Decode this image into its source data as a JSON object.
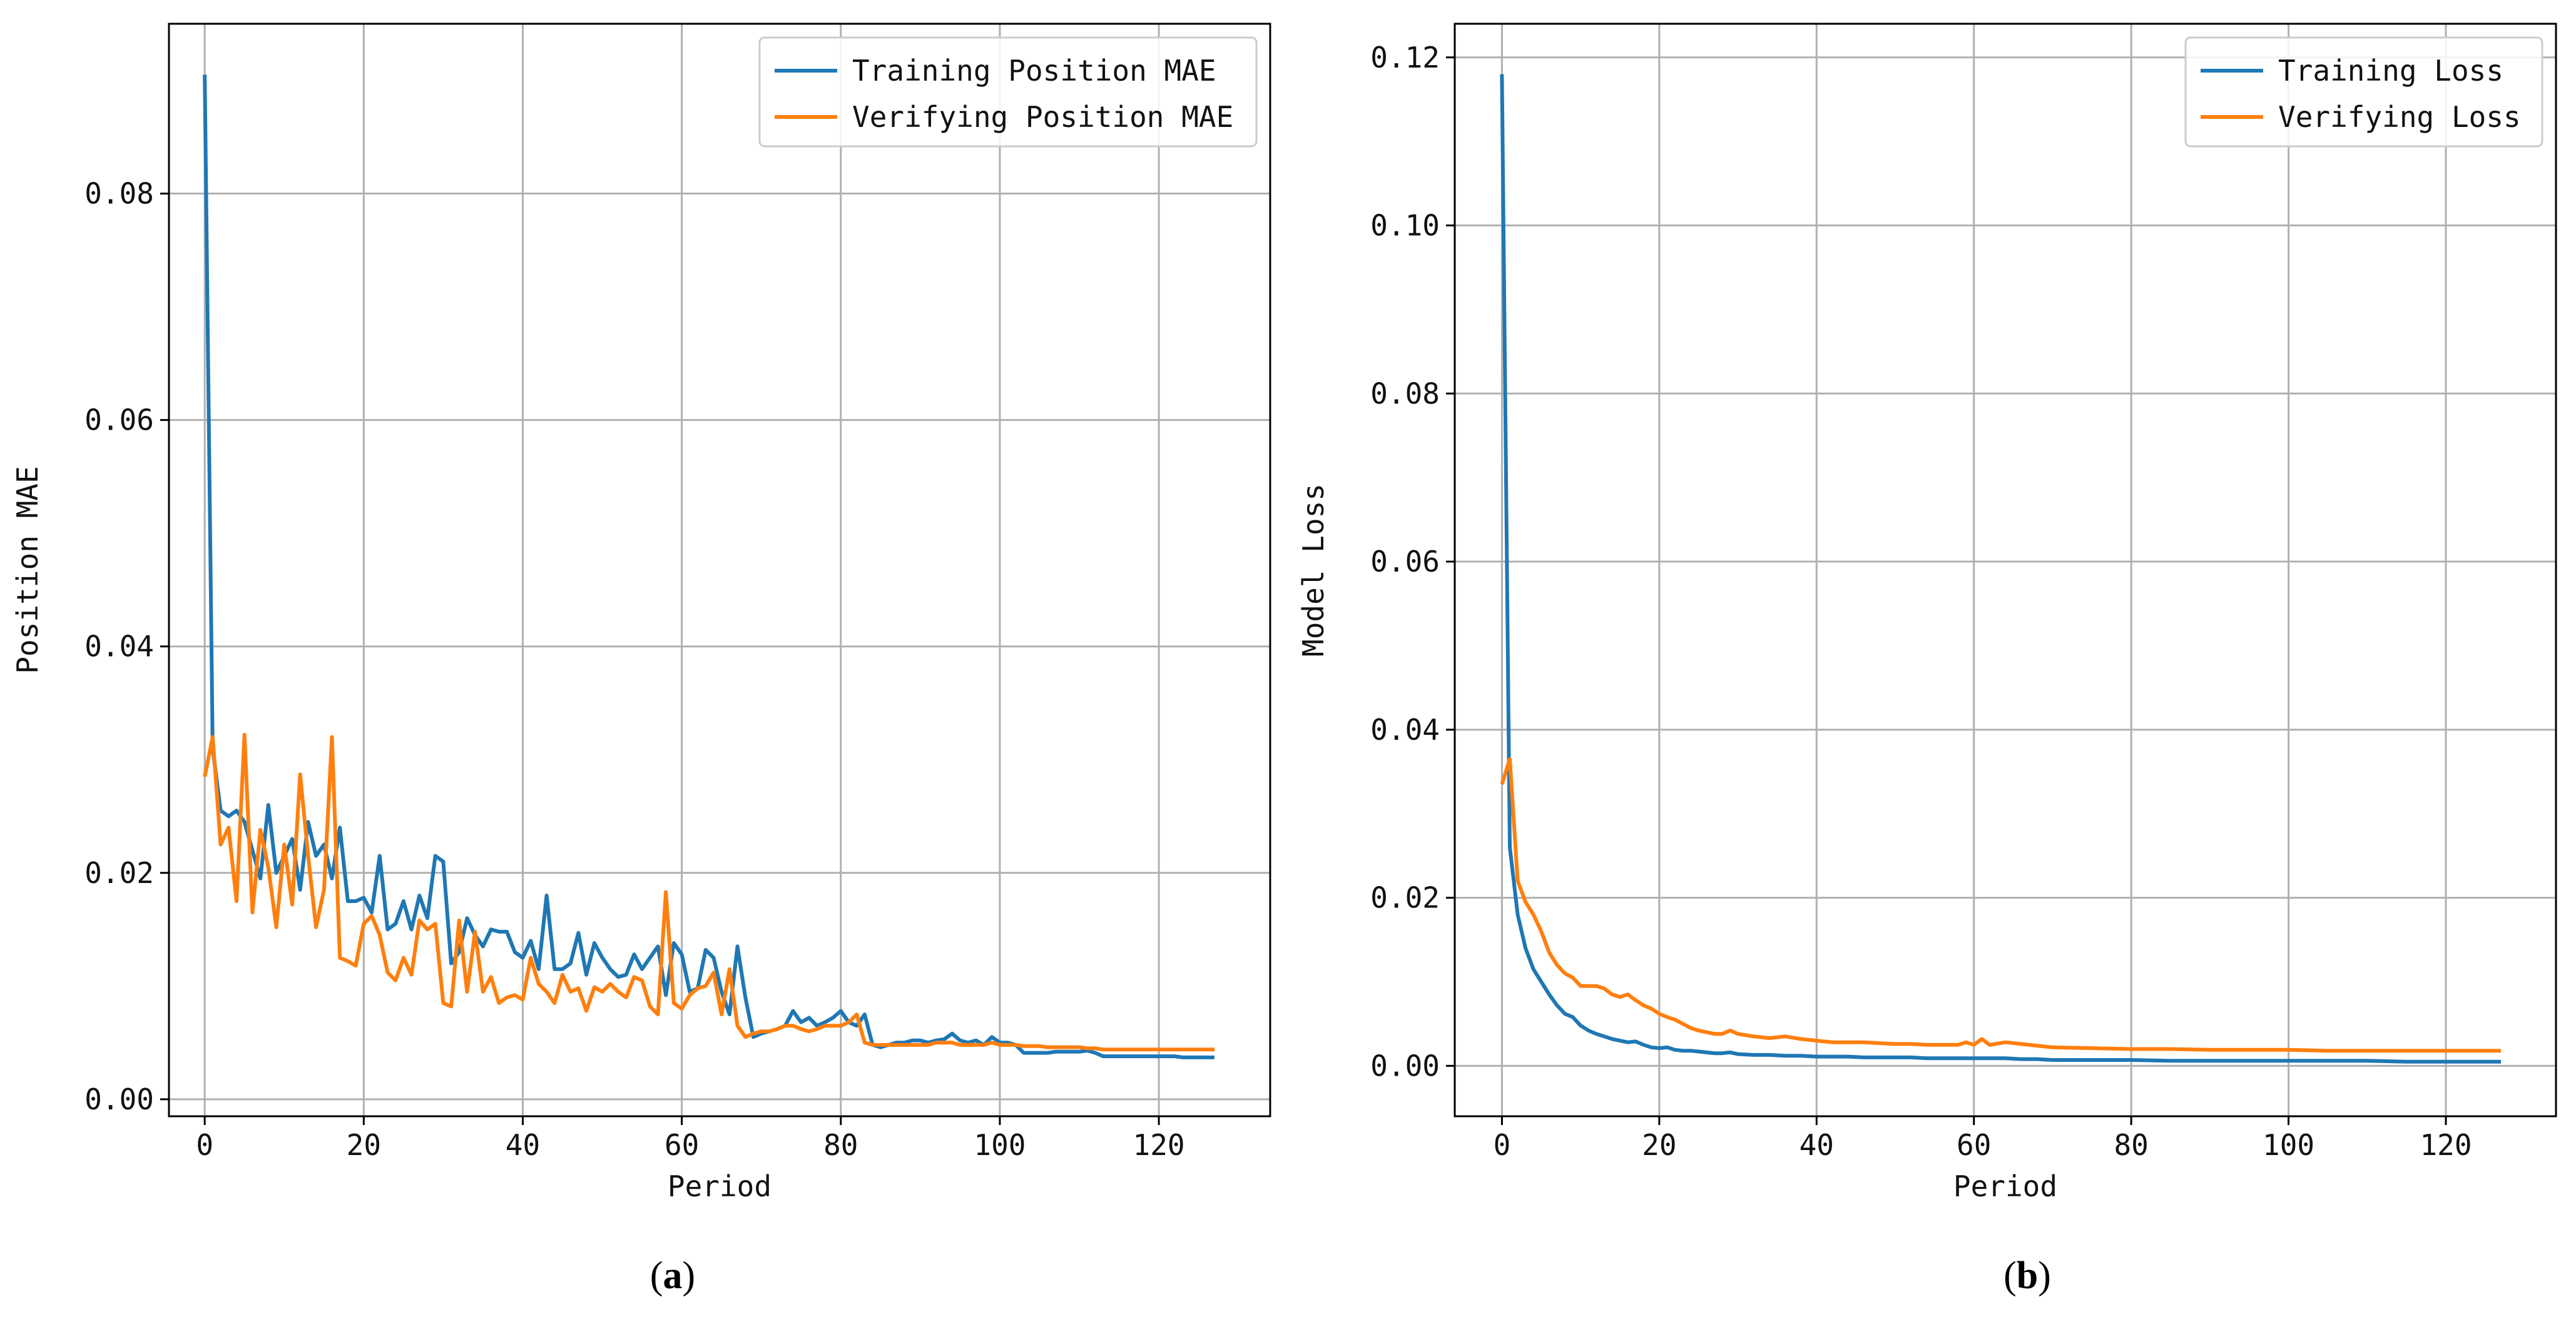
{
  "chart_data": [
    {
      "type": "line",
      "panel_caption": {
        "open": "(",
        "letter": "a",
        "close": ")"
      },
      "xlabel": "Period",
      "ylabel": "Position MAE",
      "xlim": [
        -4.5,
        134
      ],
      "ylim": [
        -0.0015,
        0.095
      ],
      "xticks": [
        0,
        20,
        40,
        60,
        80,
        100,
        120
      ],
      "xtick_labels": [
        "0",
        "20",
        "40",
        "60",
        "80",
        "100",
        "120"
      ],
      "yticks": [
        0.0,
        0.02,
        0.04,
        0.06,
        0.08
      ],
      "ytick_labels": [
        "0.00",
        "0.02",
        "0.04",
        "0.06",
        "0.08"
      ],
      "grid": true,
      "legend_position": "top-right",
      "series": [
        {
          "name": "Training Position MAE",
          "color": "#1f77b4",
          "x": [
            0,
            1,
            2,
            3,
            4,
            5,
            6,
            7,
            8,
            9,
            10,
            11,
            12,
            13,
            14,
            15,
            16,
            17,
            18,
            19,
            20,
            21,
            22,
            23,
            24,
            25,
            26,
            27,
            28,
            29,
            30,
            31,
            32,
            33,
            34,
            35,
            36,
            37,
            38,
            39,
            40,
            41,
            42,
            43,
            44,
            45,
            46,
            47,
            48,
            49,
            50,
            51,
            52,
            53,
            54,
            55,
            56,
            57,
            58,
            59,
            60,
            61,
            62,
            63,
            64,
            65,
            66,
            67,
            68,
            69,
            70,
            71,
            72,
            73,
            74,
            75,
            76,
            77,
            78,
            79,
            80,
            81,
            82,
            83,
            84,
            85,
            86,
            87,
            88,
            89,
            90,
            91,
            92,
            93,
            94,
            95,
            96,
            97,
            98,
            99,
            100,
            101,
            102,
            103,
            104,
            105,
            106,
            107,
            108,
            109,
            110,
            111,
            112,
            113,
            114,
            115,
            116,
            117,
            118,
            119,
            120,
            121,
            122,
            123,
            124,
            125,
            126,
            127
          ],
          "values": [
            0.0905,
            0.031,
            0.0255,
            0.025,
            0.0255,
            0.0245,
            0.022,
            0.0195,
            0.026,
            0.02,
            0.0215,
            0.023,
            0.0185,
            0.0245,
            0.0215,
            0.0225,
            0.0195,
            0.024,
            0.0175,
            0.0175,
            0.0178,
            0.0165,
            0.0215,
            0.015,
            0.0155,
            0.0175,
            0.015,
            0.018,
            0.016,
            0.0215,
            0.021,
            0.012,
            0.013,
            0.016,
            0.0145,
            0.0135,
            0.015,
            0.0148,
            0.0148,
            0.013,
            0.0125,
            0.014,
            0.0115,
            0.018,
            0.0115,
            0.0115,
            0.012,
            0.0147,
            0.011,
            0.0138,
            0.0125,
            0.0115,
            0.0108,
            0.011,
            0.0128,
            0.0115,
            0.0125,
            0.0135,
            0.0092,
            0.0138,
            0.0128,
            0.0095,
            0.0098,
            0.0132,
            0.0125,
            0.0095,
            0.0075,
            0.0135,
            0.009,
            0.0055,
            0.0058,
            0.006,
            0.0062,
            0.0065,
            0.0078,
            0.0068,
            0.0072,
            0.0065,
            0.0068,
            0.0072,
            0.0078,
            0.0068,
            0.0065,
            0.0075,
            0.0048,
            0.0046,
            0.0048,
            0.005,
            0.005,
            0.0052,
            0.0052,
            0.005,
            0.0052,
            0.0053,
            0.0058,
            0.0052,
            0.005,
            0.0052,
            0.0048,
            0.0055,
            0.005,
            0.005,
            0.0048,
            0.0041,
            0.0041,
            0.0041,
            0.0041,
            0.0042,
            0.0042,
            0.0042,
            0.0042,
            0.0043,
            0.0041,
            0.0038,
            0.0038,
            0.0038,
            0.0038,
            0.0038,
            0.0038,
            0.0038,
            0.0038,
            0.0038,
            0.0038,
            0.0037,
            0.0037,
            0.0037,
            0.0037,
            0.0037
          ]
        },
        {
          "name": "Verifying Position MAE",
          "color": "#ff7f0e",
          "x": [
            0,
            1,
            2,
            3,
            4,
            5,
            6,
            7,
            8,
            9,
            10,
            11,
            12,
            13,
            14,
            15,
            16,
            17,
            18,
            19,
            20,
            21,
            22,
            23,
            24,
            25,
            26,
            27,
            28,
            29,
            30,
            31,
            32,
            33,
            34,
            35,
            36,
            37,
            38,
            39,
            40,
            41,
            42,
            43,
            44,
            45,
            46,
            47,
            48,
            49,
            50,
            51,
            52,
            53,
            54,
            55,
            56,
            57,
            58,
            59,
            60,
            61,
            62,
            63,
            64,
            65,
            66,
            67,
            68,
            69,
            70,
            71,
            72,
            73,
            74,
            75,
            76,
            77,
            78,
            79,
            80,
            81,
            82,
            83,
            84,
            85,
            86,
            87,
            88,
            89,
            90,
            91,
            92,
            93,
            94,
            95,
            96,
            97,
            98,
            99,
            100,
            101,
            102,
            103,
            104,
            105,
            106,
            107,
            108,
            109,
            110,
            111,
            112,
            113,
            114,
            115,
            116,
            117,
            118,
            119,
            120,
            121,
            122,
            123,
            124,
            125,
            126,
            127
          ],
          "values": [
            0.0285,
            0.032,
            0.0225,
            0.024,
            0.0175,
            0.0322,
            0.0165,
            0.0238,
            0.0205,
            0.0152,
            0.0225,
            0.0172,
            0.0287,
            0.0215,
            0.0152,
            0.0185,
            0.032,
            0.0125,
            0.0122,
            0.0118,
            0.0155,
            0.0162,
            0.0145,
            0.0112,
            0.0105,
            0.0125,
            0.011,
            0.0158,
            0.015,
            0.0155,
            0.0085,
            0.0082,
            0.0158,
            0.0095,
            0.0148,
            0.0095,
            0.0108,
            0.0085,
            0.009,
            0.0092,
            0.0088,
            0.0125,
            0.0102,
            0.0095,
            0.0085,
            0.011,
            0.0095,
            0.0098,
            0.0078,
            0.0099,
            0.0095,
            0.0102,
            0.0095,
            0.009,
            0.0108,
            0.0105,
            0.0082,
            0.0075,
            0.0183,
            0.0085,
            0.008,
            0.0092,
            0.0098,
            0.01,
            0.0112,
            0.0075,
            0.0115,
            0.0065,
            0.0055,
            0.0058,
            0.006,
            0.006,
            0.0062,
            0.0065,
            0.0065,
            0.0062,
            0.006,
            0.0062,
            0.0065,
            0.0065,
            0.0065,
            0.0068,
            0.0075,
            0.005,
            0.0048,
            0.0048,
            0.0048,
            0.0048,
            0.0048,
            0.0048,
            0.0048,
            0.0048,
            0.005,
            0.005,
            0.005,
            0.0048,
            0.0048,
            0.0048,
            0.0048,
            0.005,
            0.0048,
            0.0048,
            0.0048,
            0.0047,
            0.0047,
            0.0047,
            0.0046,
            0.0046,
            0.0046,
            0.0046,
            0.0046,
            0.0045,
            0.0045,
            0.0044,
            0.0044,
            0.0044,
            0.0044,
            0.0044,
            0.0044,
            0.0044,
            0.0044,
            0.0044,
            0.0044,
            0.0044,
            0.0044,
            0.0044,
            0.0044,
            0.0044
          ]
        }
      ]
    },
    {
      "type": "line",
      "panel_caption": {
        "open": "(",
        "letter": "b",
        "close": ")"
      },
      "xlabel": "Period",
      "ylabel": "Model Loss",
      "xlim": [
        -6,
        134
      ],
      "ylim": [
        -0.006,
        0.124
      ],
      "xticks": [
        0,
        20,
        40,
        60,
        80,
        100,
        120
      ],
      "xtick_labels": [
        "0",
        "20",
        "40",
        "60",
        "80",
        "100",
        "120"
      ],
      "yticks": [
        0.0,
        0.02,
        0.04,
        0.06,
        0.08,
        0.1,
        0.12
      ],
      "ytick_labels": [
        "0.00",
        "0.02",
        "0.04",
        "0.06",
        "0.08",
        "0.10",
        "0.12"
      ],
      "grid": true,
      "legend_position": "top-right",
      "series": [
        {
          "name": "Training Loss",
          "color": "#1f77b4",
          "x": [
            0,
            1,
            2,
            3,
            4,
            5,
            6,
            7,
            8,
            9,
            10,
            11,
            12,
            13,
            14,
            15,
            16,
            17,
            18,
            19,
            20,
            21,
            22,
            23,
            24,
            25,
            26,
            27,
            28,
            29,
            30,
            32,
            34,
            36,
            38,
            40,
            42,
            44,
            46,
            48,
            50,
            52,
            54,
            56,
            58,
            60,
            62,
            64,
            66,
            68,
            70,
            75,
            80,
            85,
            90,
            95,
            100,
            105,
            110,
            115,
            120,
            125,
            127
          ],
          "values": [
            0.118,
            0.026,
            0.018,
            0.014,
            0.0115,
            0.01,
            0.0085,
            0.0072,
            0.0062,
            0.0058,
            0.0048,
            0.0042,
            0.0038,
            0.0035,
            0.0032,
            0.003,
            0.0028,
            0.0029,
            0.0025,
            0.0022,
            0.0021,
            0.0022,
            0.0019,
            0.0018,
            0.0018,
            0.0017,
            0.0016,
            0.0015,
            0.0015,
            0.0016,
            0.0014,
            0.0013,
            0.0013,
            0.0012,
            0.0012,
            0.0011,
            0.0011,
            0.0011,
            0.001,
            0.001,
            0.001,
            0.001,
            0.0009,
            0.0009,
            0.0009,
            0.0009,
            0.0009,
            0.0009,
            0.0008,
            0.0008,
            0.0007,
            0.0007,
            0.0007,
            0.0006,
            0.0006,
            0.0006,
            0.0006,
            0.0006,
            0.0006,
            0.0005,
            0.0005,
            0.0005,
            0.0005
          ]
        },
        {
          "name": "Verifying Loss",
          "color": "#ff7f0e",
          "x": [
            0,
            1,
            2,
            3,
            4,
            5,
            6,
            7,
            8,
            9,
            10,
            11,
            12,
            13,
            14,
            15,
            16,
            17,
            18,
            19,
            20,
            21,
            22,
            23,
            24,
            25,
            26,
            27,
            28,
            29,
            30,
            32,
            34,
            36,
            38,
            40,
            42,
            44,
            46,
            48,
            50,
            52,
            54,
            56,
            58,
            59,
            60,
            61,
            62,
            64,
            66,
            68,
            70,
            75,
            80,
            85,
            90,
            95,
            100,
            105,
            110,
            115,
            120,
            125,
            127
          ],
          "values": [
            0.0335,
            0.0365,
            0.022,
            0.0195,
            0.018,
            0.016,
            0.0135,
            0.012,
            0.011,
            0.0105,
            0.0095,
            0.0095,
            0.0095,
            0.0092,
            0.0085,
            0.0082,
            0.0085,
            0.0078,
            0.0072,
            0.0068,
            0.0062,
            0.0058,
            0.0055,
            0.005,
            0.0045,
            0.0042,
            0.004,
            0.0038,
            0.0038,
            0.0042,
            0.0038,
            0.0035,
            0.0033,
            0.0035,
            0.0032,
            0.003,
            0.0028,
            0.0028,
            0.0028,
            0.0027,
            0.0026,
            0.0026,
            0.0025,
            0.0025,
            0.0025,
            0.0028,
            0.0025,
            0.0032,
            0.0025,
            0.0028,
            0.0026,
            0.0024,
            0.0022,
            0.0021,
            0.002,
            0.002,
            0.0019,
            0.0019,
            0.0019,
            0.0018,
            0.0018,
            0.0018,
            0.0018,
            0.0018,
            0.0018
          ]
        }
      ]
    }
  ]
}
